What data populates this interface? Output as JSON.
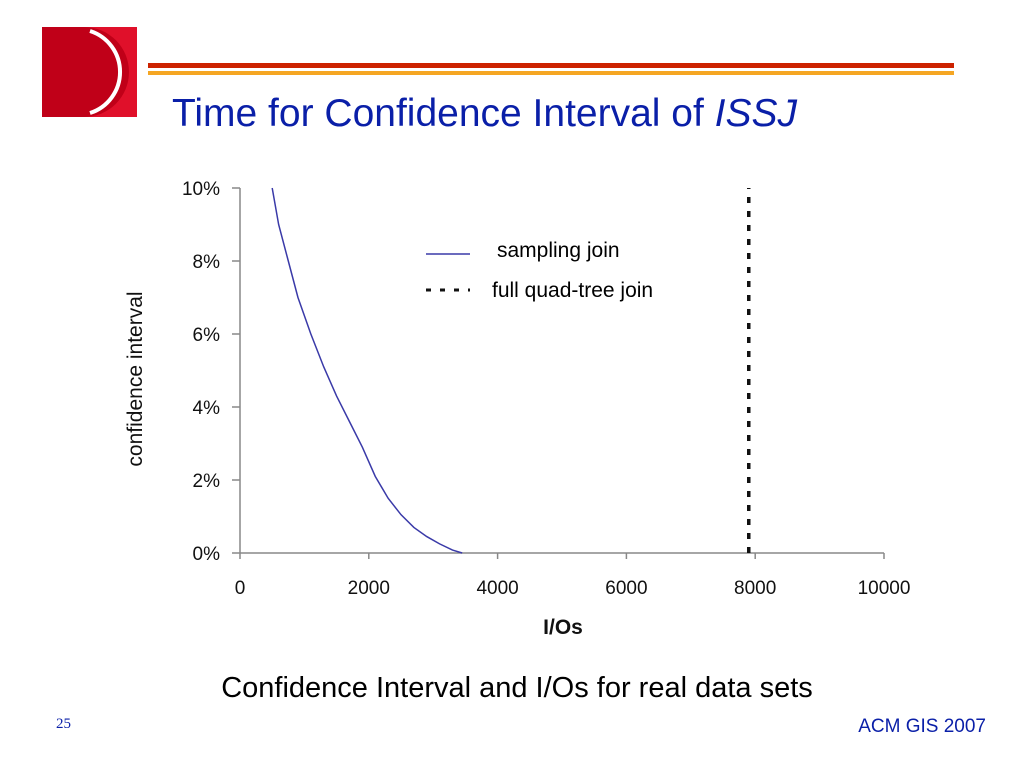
{
  "slide": {
    "title_main": "Time for Confidence Interval of ",
    "title_italic": "ISSJ",
    "caption": "Confidence Interval and I/Os  for real data sets",
    "page_number": "25",
    "footer": "ACM GIS 2007"
  },
  "colors": {
    "title": "#0a1fa8",
    "logo_red": "#e0102a",
    "logo_dark": "#c00018",
    "rule_red": "#cc2200",
    "rule_orange": "#f5a623",
    "sampling_line": "#3a3aa8",
    "quad_tree_line": "#111111"
  },
  "chart_data": {
    "type": "line",
    "xlabel": "I/Os",
    "ylabel": "confidence interval",
    "xlim": [
      0,
      10000
    ],
    "ylim": [
      0,
      10
    ],
    "x_ticks": [
      "0",
      "2000",
      "4000",
      "6000",
      "8000",
      "10000"
    ],
    "y_ticks": [
      "0%",
      "2%",
      "4%",
      "6%",
      "8%",
      "10%"
    ],
    "grid": false,
    "legend_position": "top-right",
    "series": [
      {
        "name": "sampling join",
        "style": "solid",
        "x": [
          500,
          600,
          750,
          900,
          1100,
          1300,
          1500,
          1700,
          1900,
          2100,
          2300,
          2500,
          2700,
          2900,
          3100,
          3300,
          3450
        ],
        "y": [
          10.0,
          9.0,
          8.0,
          7.0,
          6.0,
          5.1,
          4.3,
          3.6,
          2.9,
          2.1,
          1.5,
          1.05,
          0.7,
          0.45,
          0.25,
          0.08,
          0.0
        ]
      },
      {
        "name": "full quad-tree join",
        "style": "dashed",
        "x": [
          7900,
          7900
        ],
        "y": [
          0,
          10
        ]
      }
    ]
  }
}
